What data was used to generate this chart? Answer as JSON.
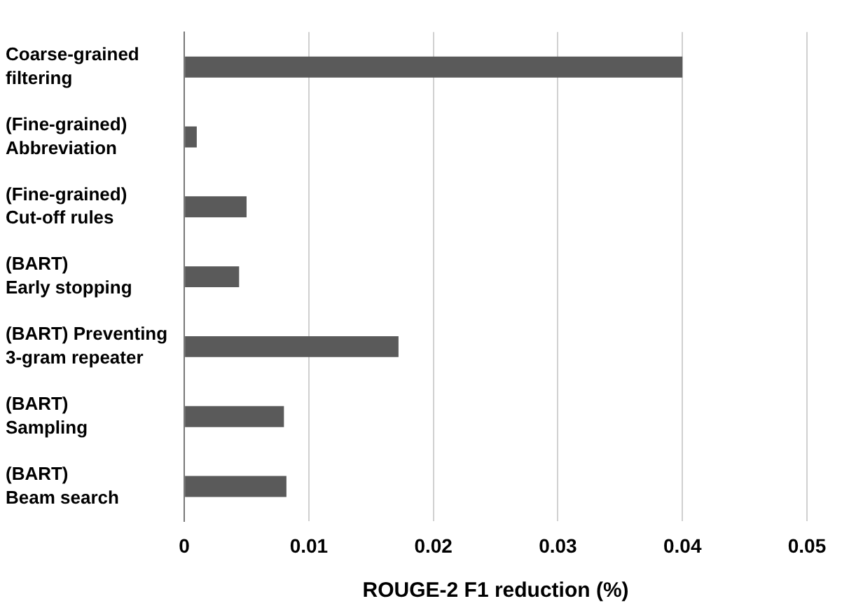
{
  "chart_data": {
    "type": "bar",
    "orientation": "horizontal",
    "xlabel": "ROUGE-2 F1 reduction (%)",
    "categories": [
      "Coarse-grained\nfiltering",
      "(Fine-grained)\nAbbreviation",
      "(Fine-grained)\nCut-off rules",
      "(BART)\nEarly stopping",
      "(BART) Preventing\n3-gram repeater",
      "(BART)\nSampling",
      "(BART)\nBeam search"
    ],
    "values": [
      0.04,
      0.001,
      0.005,
      0.0044,
      0.0172,
      0.008,
      0.0082
    ],
    "color": "#5a5a5a",
    "xlim": [
      0,
      0.05
    ],
    "xticks": [
      0,
      0.01,
      0.02,
      0.03,
      0.04,
      0.05
    ],
    "grid": "x",
    "legend": false
  }
}
